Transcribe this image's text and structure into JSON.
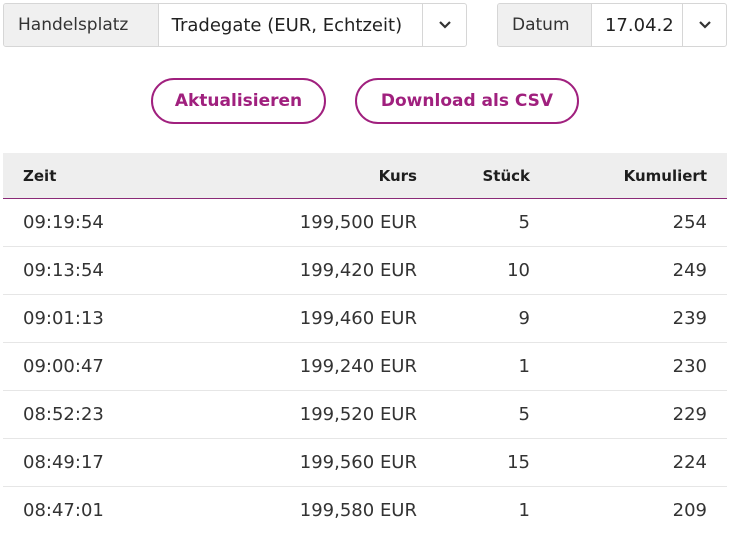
{
  "filters": {
    "market_label": "Handelsplatz",
    "market_value": "Tradegate (EUR, Echtzeit)",
    "date_label": "Datum",
    "date_value": "17.04.2"
  },
  "actions": {
    "refresh_label": "Aktualisieren",
    "csv_label": "Download als CSV"
  },
  "colors": {
    "accent": "#a0207e",
    "header_bg": "#eeeeee"
  },
  "table": {
    "headers": [
      "Zeit",
      "Kurs",
      "Stück",
      "Kumuliert"
    ],
    "rows": [
      [
        "09:19:54",
        "199,500 EUR",
        "5",
        "254"
      ],
      [
        "09:13:54",
        "199,420 EUR",
        "10",
        "249"
      ],
      [
        "09:01:13",
        "199,460 EUR",
        "9",
        "239"
      ],
      [
        "09:00:47",
        "199,240 EUR",
        "1",
        "230"
      ],
      [
        "08:52:23",
        "199,520 EUR",
        "5",
        "229"
      ],
      [
        "08:49:17",
        "199,560 EUR",
        "15",
        "224"
      ],
      [
        "08:47:01",
        "199,580 EUR",
        "1",
        "209"
      ]
    ]
  }
}
